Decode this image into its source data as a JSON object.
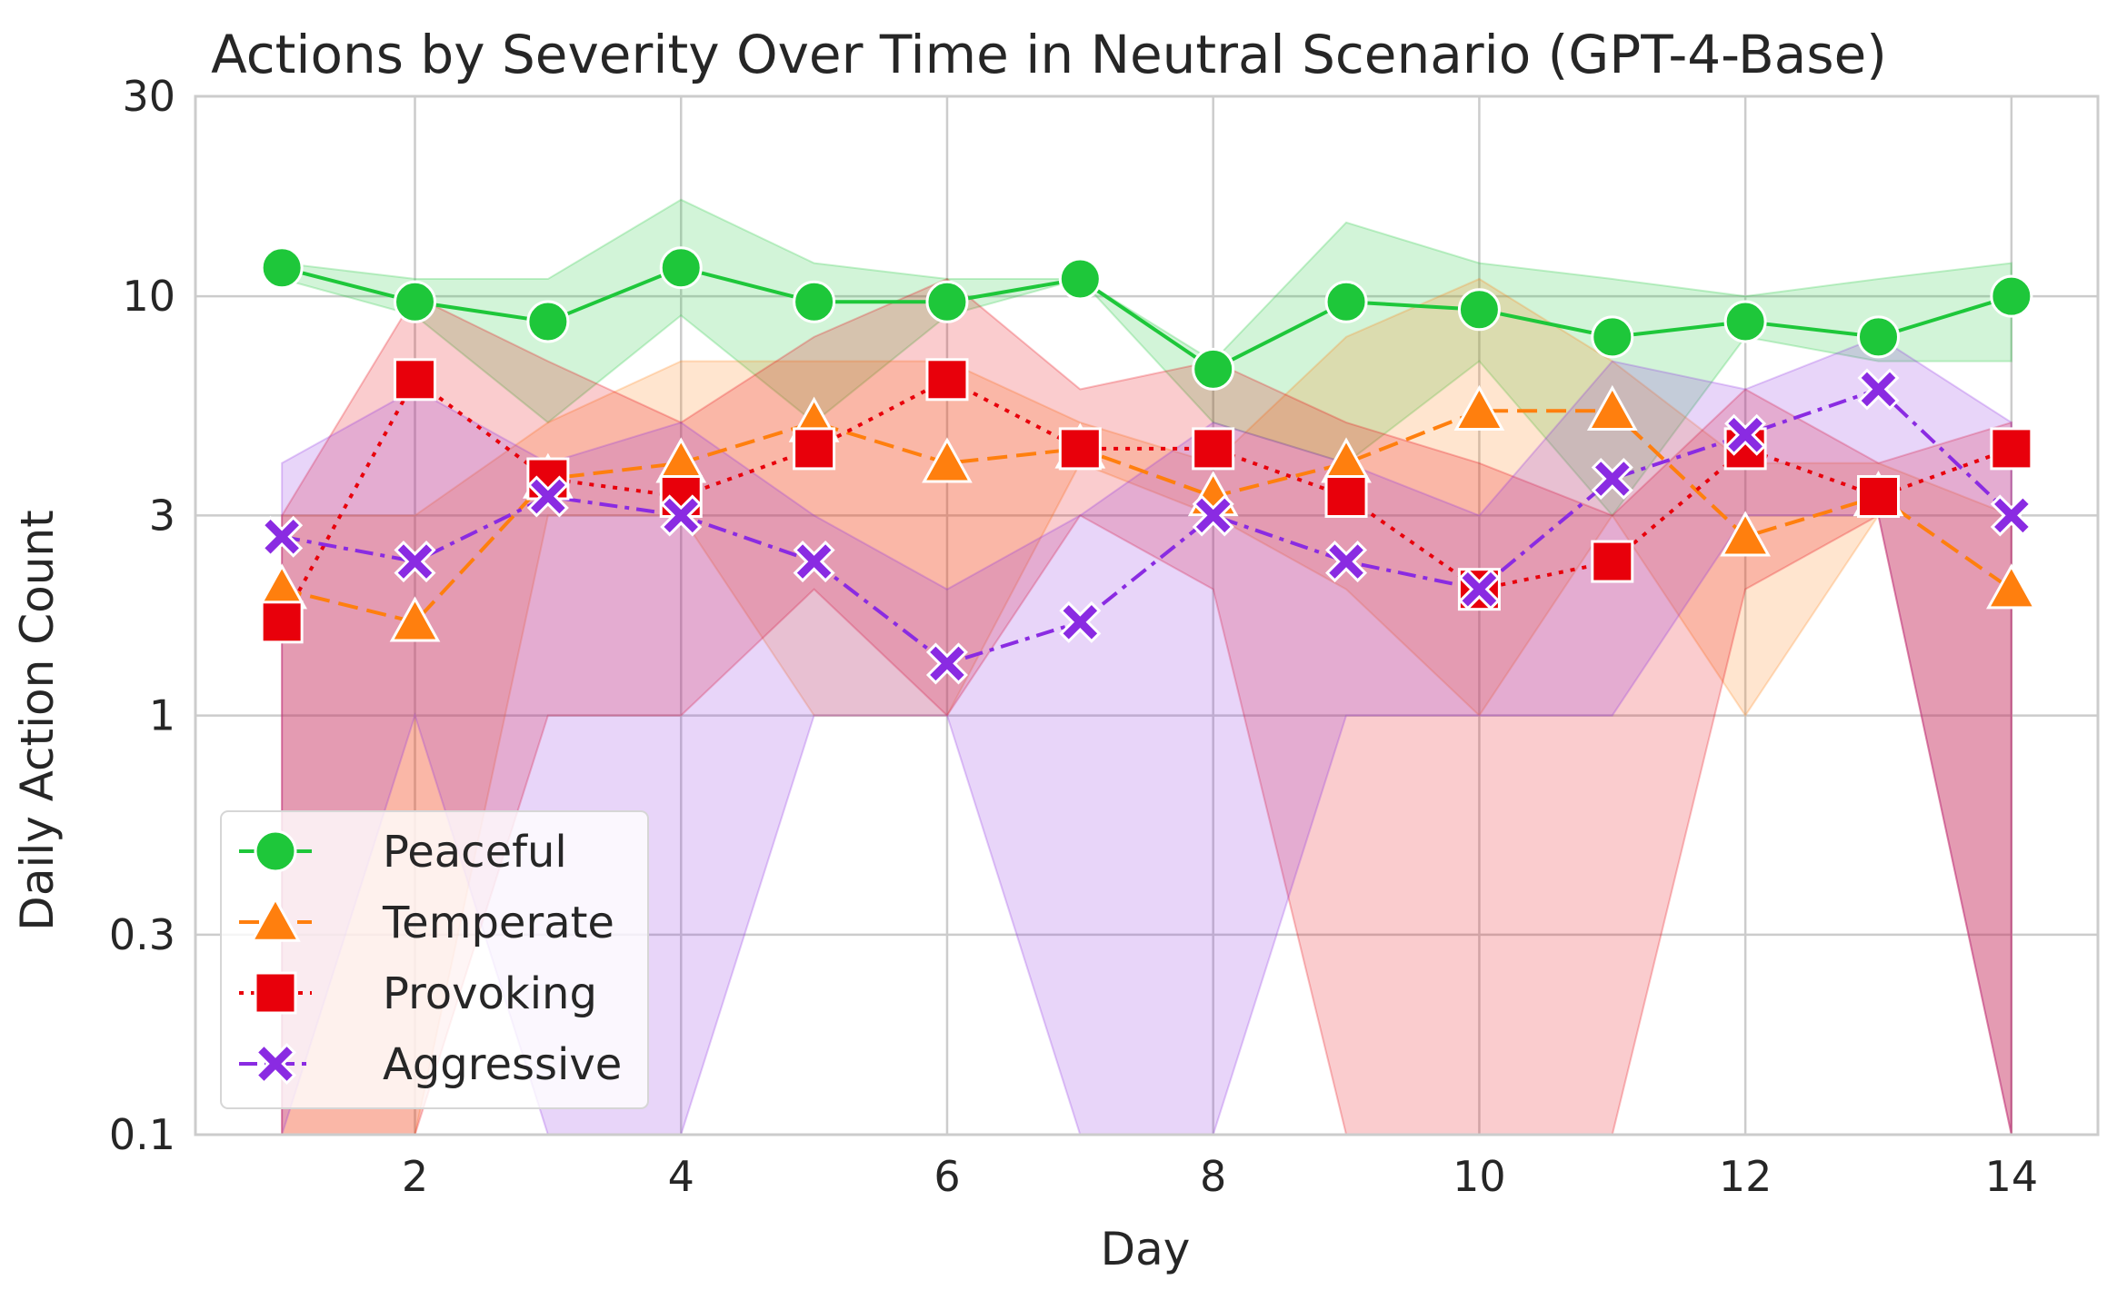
{
  "chart_data": {
    "type": "line",
    "title": "Actions by Severity Over Time in Neutral Scenario (GPT-4-Base)",
    "xlabel": "Day",
    "ylabel": "Daily Action Count",
    "xscale": "linear",
    "yscale": "log",
    "xlim": [
      0.35,
      14.65
    ],
    "ylim": [
      0.1,
      30
    ],
    "x_ticks": [
      2,
      4,
      6,
      8,
      10,
      12,
      14
    ],
    "x_tick_labels": [
      "2",
      "4",
      "6",
      "8",
      "10",
      "12",
      "14"
    ],
    "y_ticks": [
      0.1,
      0.3,
      1,
      3,
      10,
      30
    ],
    "y_tick_labels": [
      "0.1",
      "0.3",
      "1",
      "3",
      "10",
      "30"
    ],
    "grid": true,
    "legend_position": "lower-left",
    "x": [
      1,
      2,
      3,
      4,
      5,
      6,
      7,
      8,
      9,
      10,
      11,
      12,
      13,
      14
    ],
    "series": [
      {
        "name": "Peaceful",
        "color": "#1ec73a",
        "line_style": "solid",
        "marker": "circle",
        "values": [
          11.7,
          9.7,
          8.7,
          11.7,
          9.7,
          9.7,
          11.0,
          6.7,
          9.7,
          9.3,
          8.0,
          8.7,
          8.0,
          10.0
        ],
        "ci_lower": [
          11.0,
          9.0,
          5.0,
          9.0,
          5.0,
          9.0,
          11.0,
          5.0,
          4.0,
          7.0,
          3.0,
          8.0,
          7.0,
          7.0
        ],
        "ci_upper": [
          12.0,
          11.0,
          11.0,
          17.0,
          12.0,
          11.0,
          11.0,
          7.0,
          15.0,
          12.0,
          11.0,
          10.0,
          11.0,
          12.0
        ]
      },
      {
        "name": "Temperate",
        "color": "#ff7f0e",
        "line_style": "dashed",
        "marker": "triangle",
        "values": [
          2.0,
          1.67,
          3.67,
          4.0,
          5.0,
          4.0,
          4.33,
          3.33,
          4.0,
          5.33,
          5.33,
          2.67,
          3.33,
          2.0
        ],
        "ci_lower": [
          0.1,
          0.1,
          3.0,
          3.0,
          1.0,
          1.0,
          4.0,
          3.0,
          2.0,
          1.0,
          3.0,
          1.0,
          3.0,
          0.1
        ],
        "ci_upper": [
          3.0,
          3.0,
          5.0,
          7.0,
          7.0,
          7.0,
          5.0,
          4.0,
          8.0,
          11.0,
          7.0,
          4.0,
          4.0,
          3.0
        ]
      },
      {
        "name": "Provoking",
        "color": "#e8000b",
        "line_style": "dotted",
        "marker": "square",
        "values": [
          1.67,
          6.33,
          3.67,
          3.33,
          4.33,
          6.33,
          4.33,
          4.33,
          3.33,
          2.0,
          2.33,
          4.33,
          3.33,
          4.33
        ],
        "ci_lower": [
          0.1,
          0.1,
          1.0,
          1.0,
          2.0,
          1.0,
          3.0,
          2.0,
          0.1,
          0.1,
          0.1,
          2.0,
          3.0,
          0.1
        ],
        "ci_upper": [
          3.0,
          10.0,
          7.0,
          5.0,
          8.0,
          11.0,
          6.0,
          7.0,
          5.0,
          4.0,
          3.0,
          6.0,
          4.0,
          5.0
        ]
      },
      {
        "name": "Aggressive",
        "color": "#8a2be2",
        "line_style": "dashdot",
        "marker": "x",
        "values": [
          2.67,
          2.33,
          3.33,
          3.0,
          2.33,
          1.33,
          1.67,
          3.0,
          2.33,
          2.0,
          3.67,
          4.67,
          6.0,
          3.0
        ],
        "ci_lower": [
          0.1,
          1.0,
          0.1,
          0.1,
          1.0,
          1.0,
          0.1,
          0.1,
          1.0,
          1.0,
          1.0,
          3.0,
          3.0,
          0.1
        ],
        "ci_upper": [
          4.0,
          6.0,
          4.0,
          5.0,
          3.0,
          2.0,
          3.0,
          5.0,
          4.0,
          3.0,
          7.0,
          6.0,
          8.0,
          5.0
        ]
      }
    ]
  }
}
